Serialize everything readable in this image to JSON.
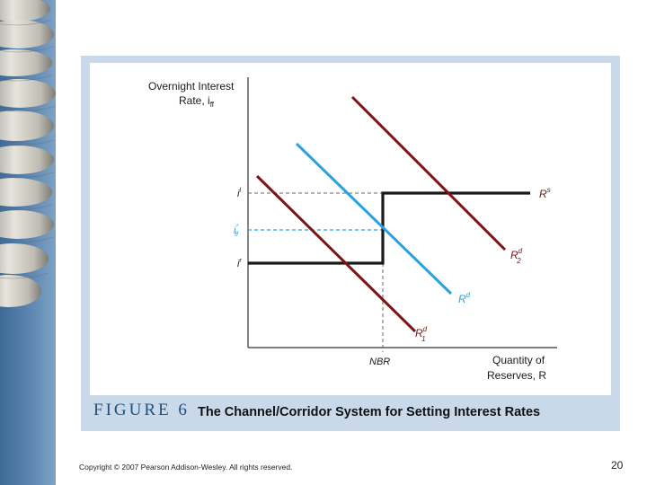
{
  "figure": {
    "number": "FIGURE 6",
    "title": "The Channel/Corridor System for Setting Interest Rates"
  },
  "axes": {
    "y_label_line1": "Overnight Interest",
    "y_label_line2": "Rate, i",
    "y_label_sub": "ff",
    "x_label_line1": "Quantity of",
    "x_label_line2": "Reserves, R",
    "x_tick": "NBR",
    "y_tick_top": "i",
    "y_tick_top_sup": "l",
    "y_tick_mid": "i",
    "y_tick_mid_sup": "*",
    "y_tick_mid_sub": "ff",
    "y_tick_bottom": "i",
    "y_tick_bottom_sup": "r"
  },
  "curves": {
    "supply": {
      "label": "R",
      "sup": "s",
      "color": "#1a1a1a"
    },
    "demand": {
      "label": "R",
      "sup": "d",
      "color": "#29a3df"
    },
    "demand1": {
      "label": "R",
      "sup": "d",
      "sub": "1",
      "color": "#7b1516"
    },
    "demand2": {
      "label": "R",
      "sup": "d",
      "sub": "2",
      "color": "#7b1516"
    }
  },
  "footer": {
    "copyright": "Copyright © 2007 Pearson Addison-Wesley. All rights reserved.",
    "page": "20"
  }
}
